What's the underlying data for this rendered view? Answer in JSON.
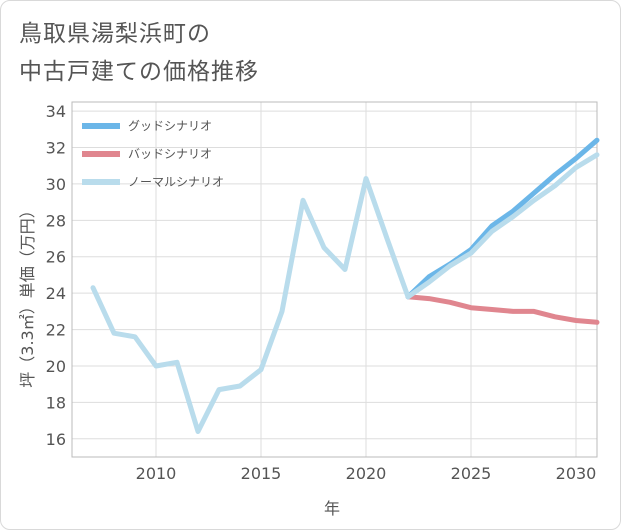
{
  "title": {
    "line1": "鳥取県湯梨浜町の",
    "line2": "中古戸建ての価格推移"
  },
  "chart_data": {
    "type": "line",
    "title": "鳥取県湯梨浜町の中古戸建ての価格推移",
    "xlabel": "年",
    "ylabel": "坪（3.3㎡）単価（万円）",
    "xlim": [
      2006,
      2031
    ],
    "ylim": [
      15,
      34.5
    ],
    "x_ticks": [
      2010,
      2015,
      2020,
      2025,
      2030
    ],
    "y_ticks": [
      16,
      18,
      20,
      22,
      24,
      26,
      28,
      30,
      32,
      34
    ],
    "grid": true,
    "legend_position": "top-left",
    "series": [
      {
        "name": "グッドシナリオ",
        "color": "#6bb6e8",
        "x": [
          2022,
          2023,
          2024,
          2025,
          2026,
          2027,
          2028,
          2029,
          2030,
          2031
        ],
        "y": [
          23.8,
          24.9,
          25.6,
          26.4,
          27.7,
          28.5,
          29.5,
          30.5,
          31.4,
          32.4
        ]
      },
      {
        "name": "バッドシナリオ",
        "color": "#e0868f",
        "x": [
          2022,
          2023,
          2024,
          2025,
          2026,
          2027,
          2028,
          2029,
          2030,
          2031
        ],
        "y": [
          23.8,
          23.7,
          23.5,
          23.2,
          23.1,
          23.0,
          23.0,
          22.7,
          22.5,
          22.4
        ]
      },
      {
        "name": "ノーマルシナリオ",
        "color": "#b9dcec",
        "x": [
          2007,
          2008,
          2009,
          2010,
          2011,
          2012,
          2013,
          2014,
          2015,
          2016,
          2017,
          2018,
          2019,
          2020,
          2021,
          2022,
          2023,
          2024,
          2025,
          2026,
          2027,
          2028,
          2029,
          2030,
          2031
        ],
        "y": [
          24.3,
          21.8,
          21.6,
          20.0,
          20.2,
          16.4,
          18.7,
          18.9,
          19.8,
          23.0,
          29.1,
          26.5,
          25.3,
          30.3,
          27.0,
          23.8,
          24.6,
          25.5,
          26.2,
          27.4,
          28.2,
          29.1,
          29.9,
          30.9,
          31.6
        ]
      }
    ]
  }
}
